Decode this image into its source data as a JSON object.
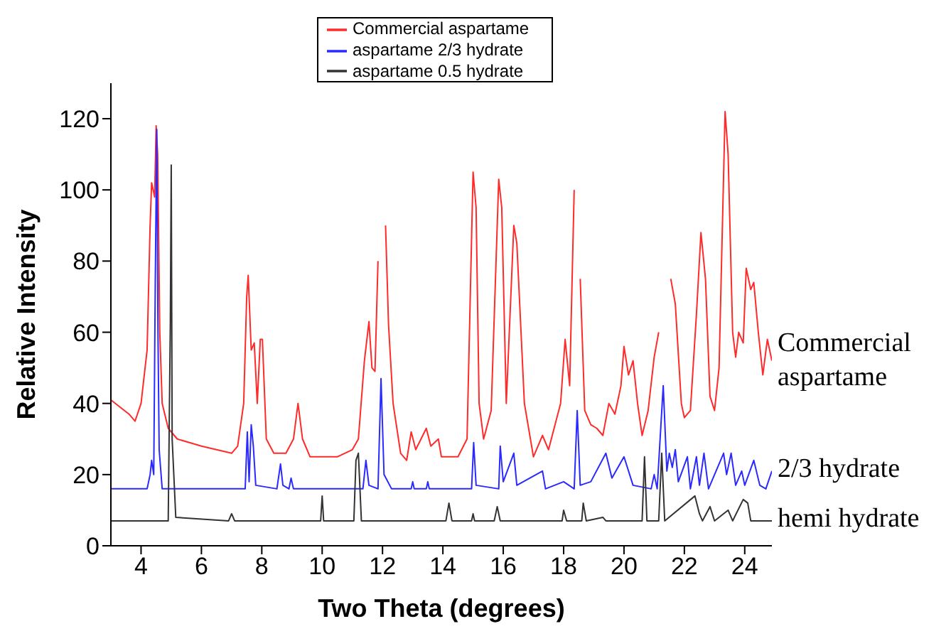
{
  "chart_data": {
    "type": "line",
    "xlabel": "Two Theta (degrees)",
    "ylabel": "Relative Intensity",
    "xlim": [
      3,
      24.9
    ],
    "ylim": [
      0,
      130
    ],
    "xticks": [
      4,
      6,
      8,
      10,
      12,
      14,
      16,
      18,
      20,
      22,
      24
    ],
    "yticks": [
      0,
      20,
      40,
      60,
      80,
      100,
      120
    ],
    "legend": "top",
    "annotations": [
      "Commercial aspartame",
      "2/3 hydrate",
      "hemi hydrate"
    ],
    "series": [
      {
        "name": "Commercial aspartame",
        "color": "#ff2a2a",
        "x": [
          3.0,
          3.3,
          3.6,
          3.8,
          4.0,
          4.2,
          4.3,
          4.35,
          4.45,
          4.5,
          4.55,
          4.62,
          4.7,
          4.9,
          5.2,
          5.6,
          6.0,
          6.5,
          7.0,
          7.2,
          7.4,
          7.5,
          7.55,
          7.65,
          7.75,
          7.85,
          7.95,
          8.02,
          8.15,
          8.4,
          8.8,
          9.05,
          9.2,
          9.35,
          9.6,
          10.0,
          10.5,
          11.0,
          11.2,
          11.4,
          11.55,
          11.65,
          11.75,
          11.85,
          11.95,
          12.1,
          12.2,
          12.35,
          12.6,
          12.8,
          12.95,
          13.1,
          13.45,
          13.6,
          13.85,
          13.95,
          14.5,
          14.8,
          15.0,
          15.1,
          15.2,
          15.35,
          15.6,
          15.85,
          15.95,
          16.1,
          16.35,
          16.45,
          16.7,
          17.0,
          17.3,
          17.5,
          17.9,
          18.05,
          18.2,
          18.35,
          18.45,
          18.55,
          18.7,
          18.9,
          19.1,
          19.3,
          19.5,
          19.7,
          19.9,
          20.0,
          20.15,
          20.3,
          20.45,
          20.6,
          20.8,
          21.0,
          21.15,
          21.25,
          21.4,
          21.55,
          21.7,
          21.9,
          22.0,
          22.2,
          22.4,
          22.55,
          22.7,
          22.85,
          23.0,
          23.15,
          23.35,
          23.45,
          23.6,
          23.7,
          23.8,
          23.95,
          24.05,
          24.2,
          24.3,
          24.45,
          24.6,
          24.75,
          24.9
        ],
        "values": [
          41,
          39,
          37,
          35,
          40,
          55,
          90,
          102,
          98,
          118,
          110,
          60,
          40,
          33,
          30,
          29,
          28,
          27,
          26,
          28,
          40,
          70,
          76,
          55,
          57,
          40,
          58,
          58,
          30,
          26,
          26,
          30,
          40,
          30,
          25,
          25,
          25,
          27,
          30,
          52,
          63,
          50,
          49,
          80,
          null,
          90,
          62,
          40,
          26,
          24,
          32,
          27,
          33,
          28,
          30,
          25,
          25,
          30,
          105,
          95,
          40,
          30,
          38,
          103,
          95,
          40,
          90,
          85,
          40,
          25,
          31,
          27,
          40,
          58,
          45,
          100,
          null,
          75,
          38,
          34,
          33,
          31,
          40,
          37,
          45,
          56,
          48,
          52,
          40,
          31,
          38,
          53,
          60,
          null,
          null,
          75,
          68,
          40,
          36,
          38,
          65,
          88,
          75,
          42,
          38,
          50,
          122,
          110,
          60,
          53,
          60,
          57,
          78,
          72,
          74,
          60,
          48,
          58,
          52
        ]
      },
      {
        "name": "aspartame 2/3 hydrate",
        "color": "#2a2aff",
        "x": [
          3.0,
          4.2,
          4.3,
          4.35,
          4.42,
          4.47,
          4.52,
          4.56,
          4.6,
          4.7,
          7.45,
          7.52,
          7.58,
          7.65,
          7.72,
          7.8,
          8.5,
          8.62,
          8.7,
          8.9,
          8.97,
          9.05,
          11.35,
          11.45,
          11.55,
          11.85,
          11.95,
          12.05,
          12.3,
          12.95,
          13.0,
          13.05,
          13.45,
          13.5,
          13.55,
          14.95,
          15.02,
          15.1,
          15.85,
          15.9,
          16.0,
          16.35,
          16.45,
          17.3,
          17.4,
          18.0,
          18.35,
          18.45,
          18.55,
          18.9,
          19.4,
          19.6,
          20.0,
          20.3,
          20.9,
          21.0,
          21.1,
          21.3,
          21.42,
          21.5,
          21.6,
          21.7,
          21.8,
          22.1,
          22.2,
          22.4,
          22.5,
          22.65,
          22.8,
          23.3,
          23.4,
          23.55,
          23.7,
          23.9,
          24.0,
          24.3,
          24.5,
          24.7,
          24.9
        ],
        "values": [
          16,
          16,
          20,
          24,
          20,
          73,
          117,
          60,
          27,
          16,
          16,
          32,
          18,
          34,
          28,
          17,
          16,
          23,
          17,
          16,
          19,
          16,
          16,
          24,
          17,
          16,
          47,
          20,
          16,
          16,
          18,
          16,
          16,
          18,
          16,
          16,
          29,
          17,
          16,
          28,
          18,
          26,
          17,
          21,
          16,
          18,
          16,
          38,
          17,
          18,
          26,
          19,
          25,
          17,
          16,
          20,
          16,
          45,
          21,
          26,
          22,
          27,
          18,
          25,
          16,
          25,
          17,
          26,
          16,
          26,
          20,
          26,
          17,
          21,
          17,
          24,
          17,
          16,
          21
        ]
      },
      {
        "name": "aspartame 0.5 hydrate",
        "color": "#333333",
        "x": [
          3.0,
          4.9,
          4.97,
          5.0,
          5.03,
          5.15,
          6.9,
          7.0,
          7.1,
          9.95,
          10.0,
          10.05,
          11.05,
          11.12,
          11.2,
          11.3,
          14.1,
          14.2,
          14.3,
          14.95,
          15.0,
          15.05,
          15.7,
          15.8,
          15.9,
          17.95,
          18.0,
          18.1,
          18.6,
          18.65,
          18.75,
          19.3,
          19.4,
          20.6,
          20.68,
          20.76,
          21.15,
          21.25,
          21.35,
          22.35,
          22.5,
          22.6,
          22.85,
          23.0,
          23.45,
          23.6,
          23.95,
          24.1,
          24.2,
          24.9
        ],
        "values": [
          7,
          7,
          63,
          107,
          30,
          8,
          7,
          9,
          7,
          7,
          14,
          7,
          7,
          24,
          26,
          7,
          7,
          12,
          7,
          7,
          9,
          7,
          7,
          11,
          7,
          7,
          10,
          7,
          7,
          12,
          7,
          8,
          7,
          7,
          25,
          7,
          7,
          26,
          7,
          14,
          9,
          7,
          11,
          7,
          10,
          7,
          13,
          12,
          7,
          7
        ]
      }
    ]
  }
}
